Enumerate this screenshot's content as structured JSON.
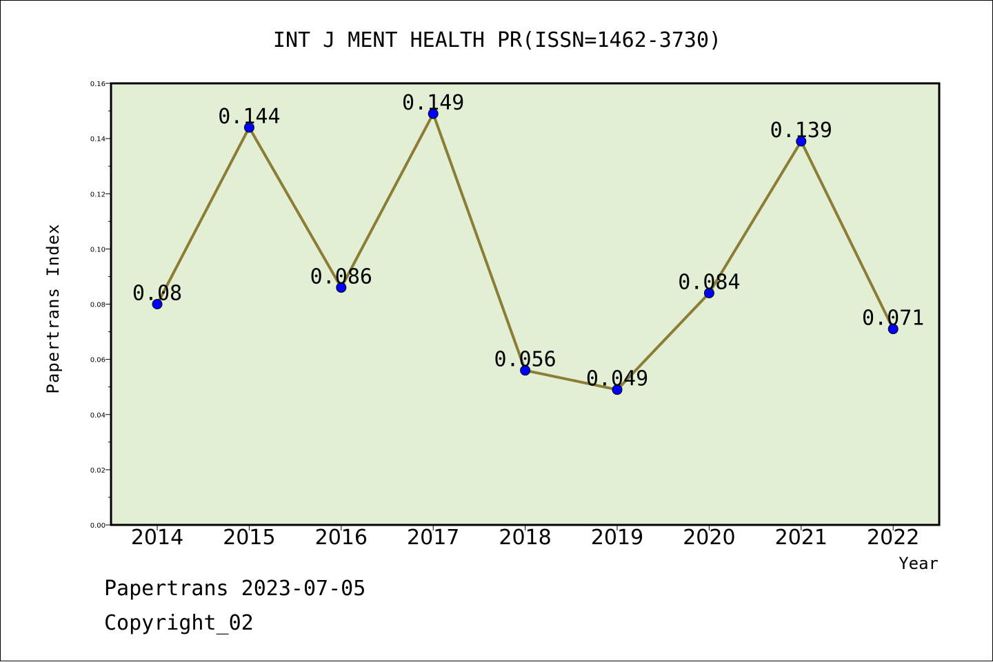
{
  "chart_data": {
    "type": "line",
    "title": "INT J MENT HEALTH PR(ISSN=1462-3730)",
    "xlabel": "Year",
    "ylabel": "Papertrans Index",
    "categories": [
      "2014",
      "2015",
      "2016",
      "2017",
      "2018",
      "2019",
      "2020",
      "2021",
      "2022"
    ],
    "series": [
      {
        "values": [
          0.08,
          0.144,
          0.086,
          0.149,
          0.056,
          0.049,
          0.084,
          0.139,
          0.071
        ]
      }
    ],
    "data_labels": [
      "0.08",
      "0.144",
      "0.086",
      "0.149",
      "0.056",
      "0.049",
      "0.084",
      "0.139",
      "0.071"
    ],
    "ylim": [
      0,
      0.16
    ],
    "yticks": [
      "0.00",
      "0.02",
      "0.04",
      "0.06",
      "0.08",
      "0.10",
      "0.12",
      "0.14",
      "0.16"
    ],
    "grid": false,
    "colors": {
      "plot_bg": "#e2efd4",
      "line": "#8b7d35",
      "marker": "#0000ff"
    }
  },
  "footer": {
    "date_line": "Papertrans 2023-07-05",
    "copyright": "Copyright_02"
  }
}
